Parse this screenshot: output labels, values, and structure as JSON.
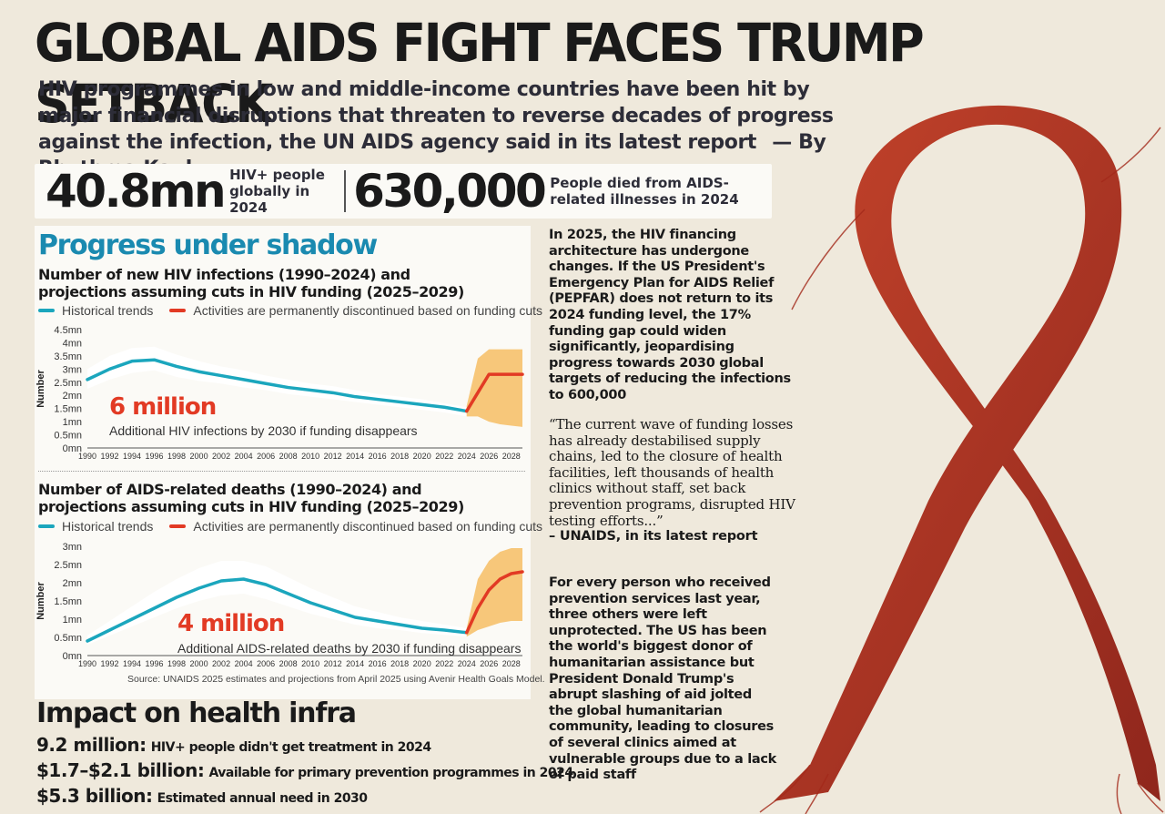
{
  "header": {
    "title": "GLOBAL AIDS FIGHT FACES TRUMP SETBACK",
    "subtitle": "HIV programmes in low and middle-income countries have been hit by major financial disruptions that threaten to reverse decades of progress against the infection, the UN AIDS agency said in its latest report",
    "byline": "— By Rhythma Kaul"
  },
  "stats": [
    {
      "value": "40.8mn",
      "label": "HIV+ people globally in 2024"
    },
    {
      "value": "630,000",
      "label": "People died from AIDS-related illnesses in 2024"
    }
  ],
  "section_title": "Progress under shadow",
  "legend": {
    "historical": "Historical trends",
    "discontinued": "Activities are permanently discontinued based on funding cuts"
  },
  "colors": {
    "historical": "#1ba6bd",
    "projection": "#e23a24",
    "band": "#f7c77a",
    "section": "#1a8ab0"
  },
  "chart_data": [
    {
      "type": "line",
      "title": "Number of new HIV infections (1990–2024) and projections assuming cuts in HIV funding (2025–2029)",
      "ylabel": "Number",
      "yticks": [
        "0mn",
        "0.5mn",
        "1mn",
        "1.5mn",
        "2mn",
        "2.5mn",
        "3mn",
        "3.5mn",
        "4mn",
        "4.5mn"
      ],
      "ylim": [
        0,
        4.5
      ],
      "xticks": [
        "1990",
        "1992",
        "1994",
        "1996",
        "1998",
        "2000",
        "2002",
        "2004",
        "2006",
        "2008",
        "2010",
        "2012",
        "2014",
        "2016",
        "2018",
        "2020",
        "2022",
        "2024",
        "2026",
        "2028"
      ],
      "xlim": [
        1990,
        2029
      ],
      "series": [
        {
          "name": "Historical trends",
          "x": [
            1990,
            1992,
            1994,
            1996,
            1998,
            2000,
            2002,
            2004,
            2006,
            2008,
            2010,
            2012,
            2014,
            2016,
            2018,
            2020,
            2022,
            2024
          ],
          "y": [
            2.6,
            3.0,
            3.3,
            3.35,
            3.1,
            2.9,
            2.75,
            2.6,
            2.45,
            2.3,
            2.2,
            2.1,
            1.95,
            1.85,
            1.75,
            1.65,
            1.55,
            1.4
          ]
        },
        {
          "name": "Activities are permanently discontinued based on funding cuts",
          "x": [
            2024,
            2025,
            2026,
            2027,
            2028,
            2029
          ],
          "y": [
            1.4,
            2.1,
            2.8,
            2.8,
            2.8,
            2.8
          ]
        }
      ],
      "band": {
        "x": [
          1990,
          1992,
          1994,
          1996,
          1998,
          2000,
          2002,
          2004,
          2006,
          2008,
          2010,
          2012,
          2014,
          2016,
          2018,
          2020,
          2022,
          2024
        ],
        "upper": [
          3.0,
          3.5,
          3.8,
          3.85,
          3.55,
          3.3,
          3.1,
          2.95,
          2.75,
          2.6,
          2.45,
          2.35,
          2.2,
          2.05,
          1.95,
          1.85,
          1.7,
          1.55
        ],
        "lower": [
          2.25,
          2.6,
          2.85,
          2.95,
          2.7,
          2.55,
          2.45,
          2.3,
          2.2,
          2.05,
          1.95,
          1.85,
          1.75,
          1.65,
          1.55,
          1.45,
          1.35,
          1.2
        ]
      },
      "proj_band": {
        "x": [
          2024,
          2025,
          2026,
          2027,
          2028,
          2029
        ],
        "upper": [
          1.6,
          3.4,
          3.75,
          3.75,
          3.75,
          3.75
        ],
        "lower": [
          1.2,
          1.2,
          1.0,
          0.9,
          0.85,
          0.8
        ]
      },
      "annotation": {
        "value": "6 million",
        "text": "Additional HIV infections by 2030 if funding disappears"
      }
    },
    {
      "type": "line",
      "title": "Number of AIDS-related deaths (1990–2024) and projections assuming cuts in HIV funding (2025–2029)",
      "ylabel": "Number",
      "yticks": [
        "0mn",
        "0.5mn",
        "1mn",
        "1.5mn",
        "2mn",
        "2.5mn",
        "3mn"
      ],
      "ylim": [
        0,
        3
      ],
      "xticks": [
        "1990",
        "1992",
        "1994",
        "1996",
        "1998",
        "2000",
        "2002",
        "2004",
        "2006",
        "2008",
        "2010",
        "2012",
        "2014",
        "2016",
        "2018",
        "2020",
        "2022",
        "2024",
        "2026",
        "2028"
      ],
      "xlim": [
        1990,
        2029
      ],
      "series": [
        {
          "name": "Historical trends",
          "x": [
            1990,
            1992,
            1994,
            1996,
            1998,
            2000,
            2002,
            2004,
            2006,
            2008,
            2010,
            2012,
            2014,
            2016,
            2018,
            2020,
            2022,
            2024
          ],
          "y": [
            0.4,
            0.7,
            1.0,
            1.3,
            1.6,
            1.85,
            2.05,
            2.1,
            1.95,
            1.7,
            1.45,
            1.25,
            1.05,
            0.95,
            0.85,
            0.75,
            0.7,
            0.63
          ]
        },
        {
          "name": "Activities are permanently discontinued based on funding cuts",
          "x": [
            2024,
            2025,
            2026,
            2027,
            2028,
            2029
          ],
          "y": [
            0.63,
            1.3,
            1.8,
            2.1,
            2.25,
            2.3
          ]
        }
      ],
      "band": {
        "x": [
          1990,
          1992,
          1994,
          1996,
          1998,
          2000,
          2002,
          2004,
          2006,
          2008,
          2010,
          2012,
          2014,
          2016,
          2018,
          2020,
          2022,
          2024
        ],
        "upper": [
          0.55,
          0.95,
          1.35,
          1.75,
          2.1,
          2.4,
          2.6,
          2.6,
          2.45,
          2.15,
          1.85,
          1.6,
          1.35,
          1.2,
          1.05,
          0.95,
          0.85,
          0.75
        ],
        "lower": [
          0.3,
          0.55,
          0.8,
          1.05,
          1.3,
          1.5,
          1.65,
          1.7,
          1.55,
          1.35,
          1.15,
          1.0,
          0.85,
          0.75,
          0.7,
          0.62,
          0.57,
          0.52
        ]
      },
      "proj_band": {
        "x": [
          2024,
          2025,
          2026,
          2027,
          2028,
          2029
        ],
        "upper": [
          0.75,
          2.1,
          2.6,
          2.85,
          2.95,
          2.95
        ],
        "lower": [
          0.52,
          0.7,
          0.8,
          0.9,
          0.95,
          0.95
        ]
      },
      "annotation": {
        "value": "4 million",
        "text": "Additional AIDS-related deaths by 2030 if funding disappears"
      }
    }
  ],
  "source": "Source: UNAIDS 2025 estimates and projections from April 2025 using Avenir Health Goals Model.",
  "impact": {
    "title": "Impact on health infra",
    "items": [
      {
        "key": "9.2 million:",
        "text": "HIV+ people didn't get treatment in 2024"
      },
      {
        "key": "$1.7–$2.1 billion:",
        "text": "Available for primary prevention programmes in 2024"
      },
      {
        "key": "$5.3 billion:",
        "text": "Estimated annual need in 2030"
      }
    ]
  },
  "column": {
    "para1": "In 2025, the HIV financing architecture has undergone changes. If the US President's Emergency Plan for AIDS Relief (PEPFAR) does not return to its 2024 funding level, the 17% funding gap could widen significantly, jeopardising progress towards 2030 global targets of reducing the infections to 600,000",
    "quote": "“The current wave of funding losses has already destabilised supply chains, led to the closure of health facilities, left thousands of health clinics without staff, set back prevention programs, disrupted HIV testing efforts...”",
    "quote_source": "– UNAIDS, in its latest report",
    "para2": "For every person who received prevention services last year, three others were left unprotected. The US has been the world's biggest donor of humanitarian assistance but President Donald Trump's abrupt slashing of aid jolted the global humanitarian community, leading to closures of several clinics aimed at vulnerable groups due to a lack of paid staff"
  }
}
